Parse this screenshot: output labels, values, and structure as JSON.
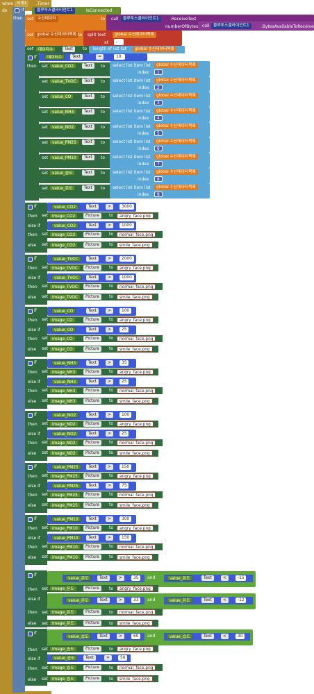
{
  "header": {
    "when": "when",
    "timer_component": "시계1",
    "timer_event": ".Timer",
    "do": "do"
  },
  "keywords": {
    "if": "if",
    "then": "then",
    "else_if": "else if",
    "else": "else",
    "set": "set",
    "to": "to",
    "and": "and",
    "at": "at",
    "index": "index",
    "call": "call",
    "split_text": "split  text",
    "length_of_list": "length of list  list",
    "select_list_item": "select list item  list"
  },
  "bluetooth": {
    "component": "블루투스클라이언트1",
    "is_connected": "IsConnected",
    "receive_text": ".ReceiveText",
    "number_of_bytes": "numberOfBytes",
    "bytes_available": ".BytesAvailableToReceive"
  },
  "globals": {
    "received": "수신데이터",
    "global_received": "global 수신데이터",
    "received_list": "수신데이터목록",
    "global_received_list": "global 수신데이터목록",
    "count": "데이터수"
  },
  "props": {
    "text": "Text",
    "picture": "Picture"
  },
  "ops": {
    "eq": "=",
    "gt": ">",
    "lt": "<"
  },
  "split_at": ",",
  "count_value": "10",
  "assignments": [
    {
      "label": "value_CO2",
      "index": "1"
    },
    {
      "label": "value_TVOC",
      "index": "2"
    },
    {
      "label": "value_CO",
      "index": "3"
    },
    {
      "label": "value_NH3",
      "index": "4"
    },
    {
      "label": "value_NO2",
      "index": "5"
    },
    {
      "label": "value_PM25",
      "index": "6"
    },
    {
      "label": "value_PM10",
      "index": "7"
    },
    {
      "label": "value_습도",
      "index": "8"
    },
    {
      "label": "value_온도",
      "index": "9"
    }
  ],
  "files": {
    "angry": "angry_face.png",
    "normal": "normal_face.png",
    "smile": "smile_face.png"
  },
  "sensors": [
    {
      "value": "value_CO2",
      "image": "image_CO2",
      "high": "3000",
      "mid": "1000"
    },
    {
      "value": "value_TVOC",
      "image": "image_TVOC",
      "high": "2000",
      "mid": "1000"
    },
    {
      "value": "value_CO",
      "image": "image_CO",
      "high": "100",
      "mid": "25"
    },
    {
      "value": "value_NH3",
      "image": "image_NH3",
      "high": "35",
      "mid": "25"
    },
    {
      "value": "value_NO2",
      "image": "image_NO2",
      "high": "100",
      "mid": "25"
    },
    {
      "value": "value_PM25",
      "image": "image_PM25",
      "high": "150",
      "mid": "75"
    },
    {
      "value": "value_PM10",
      "image": "image_PM10",
      "high": "300",
      "mid": "150"
    }
  ],
  "temperature": {
    "value": "value_온도",
    "image": "image_온도",
    "hi_a": "35",
    "lo_a": "-15",
    "hi_b": "33",
    "lo_b": "-12"
  },
  "humidity": {
    "value": "value_습도",
    "image": "image_습도",
    "hi": "60",
    "lo": "30",
    "mid": "50"
  }
}
